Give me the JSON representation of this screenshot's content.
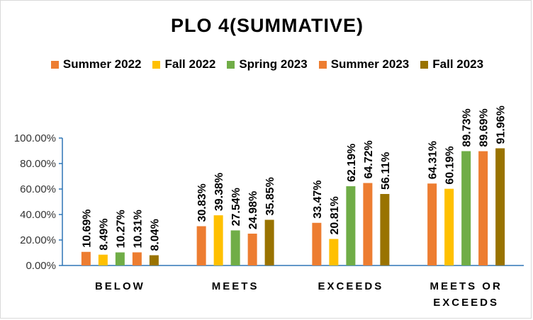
{
  "chart_data": {
    "type": "bar",
    "title": "PLO 4(SUMMATIVE)",
    "categories": [
      "BELOW",
      "MEETS",
      "EXCEEDS",
      "MEETS OR EXCEEDS"
    ],
    "series": [
      {
        "name": "Summer 2022",
        "color": "#ED7D31",
        "values": [
          10.69,
          30.83,
          33.47,
          64.31
        ],
        "labels": [
          "10.69%",
          "30.83%",
          "33.47%",
          "64.31%"
        ]
      },
      {
        "name": "Fall 2022",
        "color": "#FFC000",
        "values": [
          8.49,
          39.38,
          20.81,
          60.19
        ],
        "labels": [
          "8.49%",
          "39.38%",
          "20.81%",
          "60.19%"
        ]
      },
      {
        "name": "Spring 2023",
        "color": "#70AD47",
        "values": [
          10.27,
          27.54,
          62.19,
          89.73
        ],
        "labels": [
          "10.27%",
          "27.54%",
          "62.19%",
          "89.73%"
        ]
      },
      {
        "name": "Summer 2023",
        "color": "#ED7D31",
        "values": [
          10.31,
          24.98,
          64.72,
          89.69
        ],
        "labels": [
          "10.31%",
          "24.98%",
          "64.72%",
          "89.69%"
        ]
      },
      {
        "name": "Fall 2023",
        "color": "#997300",
        "values": [
          8.04,
          35.85,
          56.11,
          91.96
        ],
        "labels": [
          "8.04%",
          "35.85%",
          "56.11%",
          "91.96%"
        ]
      }
    ],
    "ylim": [
      0,
      100
    ],
    "yticks": [
      0,
      20,
      40,
      60,
      80,
      100
    ],
    "ytick_labels": [
      "0.00%",
      "20.00%",
      "40.00%",
      "60.00%",
      "80.00%",
      "100.00%"
    ],
    "legend_position": "top",
    "grid": false,
    "xlabel": "",
    "ylabel": ""
  }
}
